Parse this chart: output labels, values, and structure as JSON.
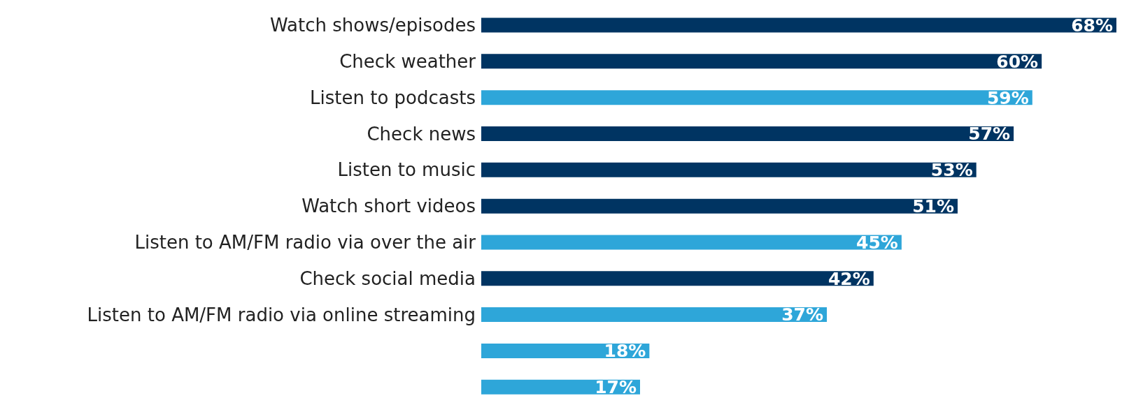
{
  "chart_data": {
    "type": "bar",
    "orientation": "horizontal",
    "categories": [
      "Watch shows/episodes",
      "Check weather",
      "Listen to podcasts",
      "Check news",
      "Listen to music",
      "Watch short videos",
      "Listen to AM/FM radio via over the air",
      "Check social media",
      "Listen to AM/FM radio via online streaming",
      null,
      null
    ],
    "values": [
      68,
      60,
      59,
      57,
      53,
      51,
      45,
      42,
      37,
      18,
      17
    ],
    "value_labels": [
      "68%",
      "60%",
      "59%",
      "57%",
      "53%",
      "51%",
      "45%",
      "42%",
      "37%",
      "18%",
      "17%"
    ],
    "colors": [
      "#003462",
      "#003462",
      "#2ea6d9",
      "#003462",
      "#003462",
      "#003462",
      "#2ea6d9",
      "#003462",
      "#2ea6d9",
      "#2ea6d9",
      "#2ea6d9"
    ]
  }
}
